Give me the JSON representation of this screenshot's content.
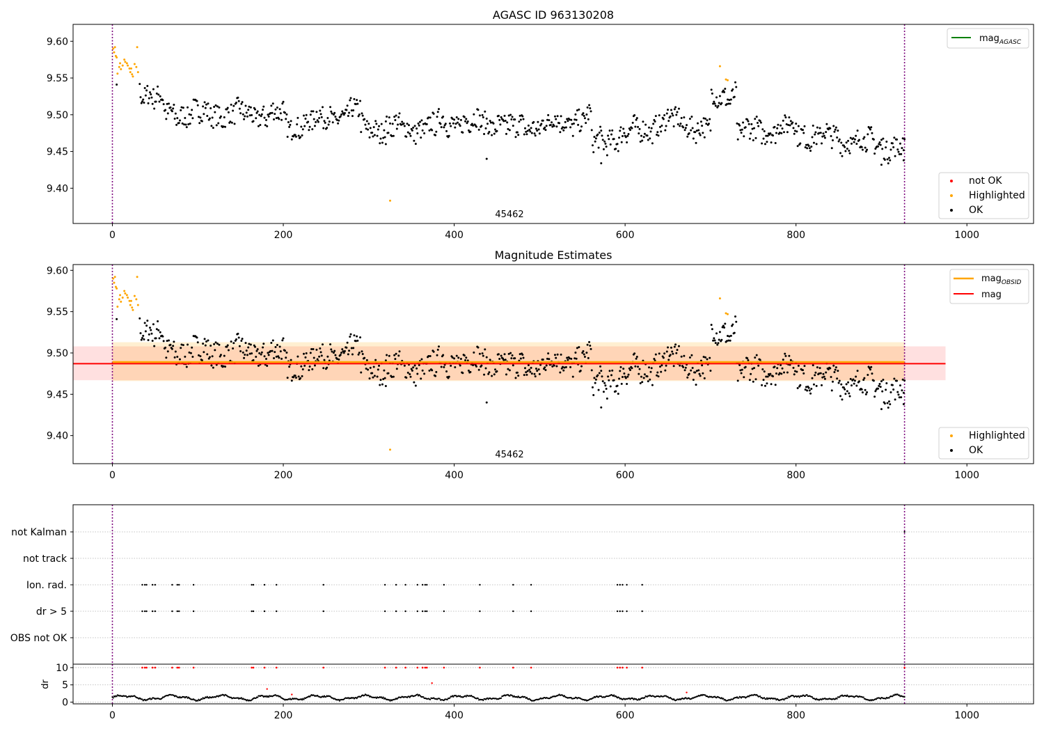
{
  "chart_data": [
    {
      "type": "scatter",
      "title": "AGASC ID 963130208",
      "xlim": [
        -46,
        1078
      ],
      "ylim": [
        9.352,
        9.623
      ],
      "x_ticks": [
        0,
        200,
        400,
        600,
        800,
        1000
      ],
      "y_ticks": [
        9.4,
        9.45,
        9.5,
        9.55,
        9.6
      ],
      "obsid_label": "45462",
      "obsid_label_x": 460,
      "obsid_boundaries": [
        0,
        927
      ],
      "legend_lines": [
        {
          "name": "mag",
          "sub": "AGASC",
          "color": "#008000"
        }
      ],
      "legend_points": [
        {
          "name": "not OK",
          "color": "#ff0000"
        },
        {
          "name": "Highlighted",
          "color": "#ffa500"
        },
        {
          "name": "OK",
          "color": "#000000"
        }
      ],
      "outlier_points": [
        [
          325,
          9.383
        ]
      ],
      "highlighted_points": [
        [
          1,
          9.59
        ],
        [
          2,
          9.585
        ],
        [
          3,
          9.592
        ],
        [
          4,
          9.58
        ],
        [
          5,
          9.578
        ],
        [
          6,
          9.556
        ],
        [
          8,
          9.565
        ],
        [
          9,
          9.57
        ],
        [
          10,
          9.562
        ],
        [
          12,
          9.567
        ],
        [
          14,
          9.575
        ],
        [
          15,
          9.572
        ],
        [
          17,
          9.57
        ],
        [
          18,
          9.567
        ],
        [
          20,
          9.563
        ],
        [
          21,
          9.558
        ],
        [
          22,
          9.563
        ],
        [
          23,
          9.555
        ],
        [
          24,
          9.552
        ],
        [
          26,
          9.569
        ],
        [
          28,
          9.565
        ],
        [
          29,
          9.592
        ],
        [
          30,
          9.558
        ],
        [
          711,
          9.566
        ],
        [
          718,
          9.548
        ],
        [
          720,
          9.547
        ]
      ],
      "ok_segments": [
        [
          0,
          25,
          9.575,
          9.545
        ],
        [
          26,
          60,
          9.54,
          9.515
        ],
        [
          61,
          200,
          9.502,
          9.5
        ],
        [
          201,
          290,
          9.483,
          9.505
        ],
        [
          291,
          380,
          9.482,
          9.482
        ],
        [
          381,
          460,
          9.49,
          9.488
        ],
        [
          461,
          560,
          9.48,
          9.495
        ],
        [
          561,
          650,
          9.46,
          9.49
        ],
        [
          651,
          700,
          9.495,
          9.478
        ],
        [
          701,
          730,
          9.52,
          9.53
        ],
        [
          731,
          800,
          9.475,
          9.485
        ],
        [
          801,
          927,
          9.475,
          9.455
        ]
      ],
      "ok_extras": [
        [
          5,
          9.541
        ],
        [
          320,
          9.46
        ],
        [
          438,
          9.44
        ],
        [
          572,
          9.434
        ],
        [
          900,
          9.432
        ],
        [
          926,
          9.438
        ]
      ]
    },
    {
      "type": "scatter",
      "title": "Magnitude Estimates",
      "xlim": [
        -46,
        1078
      ],
      "ylim": [
        9.366,
        9.607
      ],
      "x_ticks": [
        0,
        200,
        400,
        600,
        800,
        1000
      ],
      "y_ticks": [
        9.4,
        9.45,
        9.5,
        9.55,
        9.6
      ],
      "obsid_label": "45462",
      "obsid_label_x": 460,
      "obsid_boundaries": [
        0,
        927
      ],
      "mag_line": {
        "value": 9.487,
        "x_range": [
          -46,
          975
        ],
        "band": [
          9.467,
          9.508
        ],
        "color": "#ff0000"
      },
      "mag_obsid_line": {
        "value": 9.489,
        "x_range": [
          0,
          927
        ],
        "band": [
          9.466,
          9.513
        ],
        "color": "#ffa500"
      },
      "legend_lines": [
        {
          "name": "mag",
          "sub": "OBSID",
          "color": "#ffa500"
        },
        {
          "name": "mag",
          "sub": "",
          "color": "#ff0000"
        }
      ],
      "legend_points": [
        {
          "name": "Highlighted",
          "color": "#ffa500"
        },
        {
          "name": "OK",
          "color": "#000000"
        }
      ]
    },
    {
      "type": "scatter",
      "title": "",
      "xlim": [
        -46,
        1078
      ],
      "x_ticks": [
        0,
        200,
        400,
        600,
        800,
        1000
      ],
      "flag_labels": [
        "not Kalman",
        "not track",
        "Ion. rad.",
        "dr > 5",
        "OBS not OK"
      ],
      "flag_x_values": [
        35,
        38,
        40,
        47,
        50,
        70,
        76,
        78,
        95,
        163,
        165,
        178,
        192,
        247,
        319,
        332,
        343,
        357,
        363,
        366,
        368,
        388,
        430,
        469,
        490,
        591,
        594,
        597,
        602,
        620
      ],
      "not_kalman_x": [
        927
      ],
      "dr_ylabel": "dr",
      "dr_ylim": [
        -0.5,
        11
      ],
      "dr_ticks": [
        0,
        5,
        10
      ],
      "dr_red_points": [
        [
          374,
          5.5
        ],
        [
          181,
          3.8
        ],
        [
          672,
          2.8
        ],
        [
          210,
          2.2
        ]
      ],
      "dr_black_baseline": 1.3
    }
  ]
}
